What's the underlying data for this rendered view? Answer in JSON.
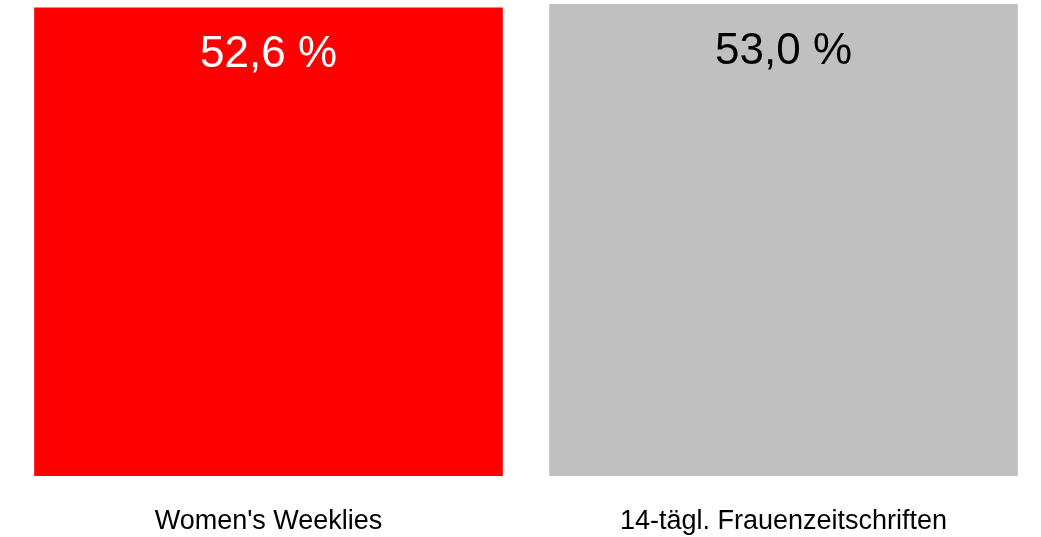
{
  "chart_data": {
    "type": "bar",
    "categories": [
      "Women's Weeklies",
      "14-tägl. Frauenzeitschriften"
    ],
    "values": [
      52.6,
      53.0
    ],
    "colors": [
      "#ff0000",
      "#c0c0c0"
    ],
    "value_labels": [
      "52,6 %",
      "53,0 %"
    ]
  }
}
